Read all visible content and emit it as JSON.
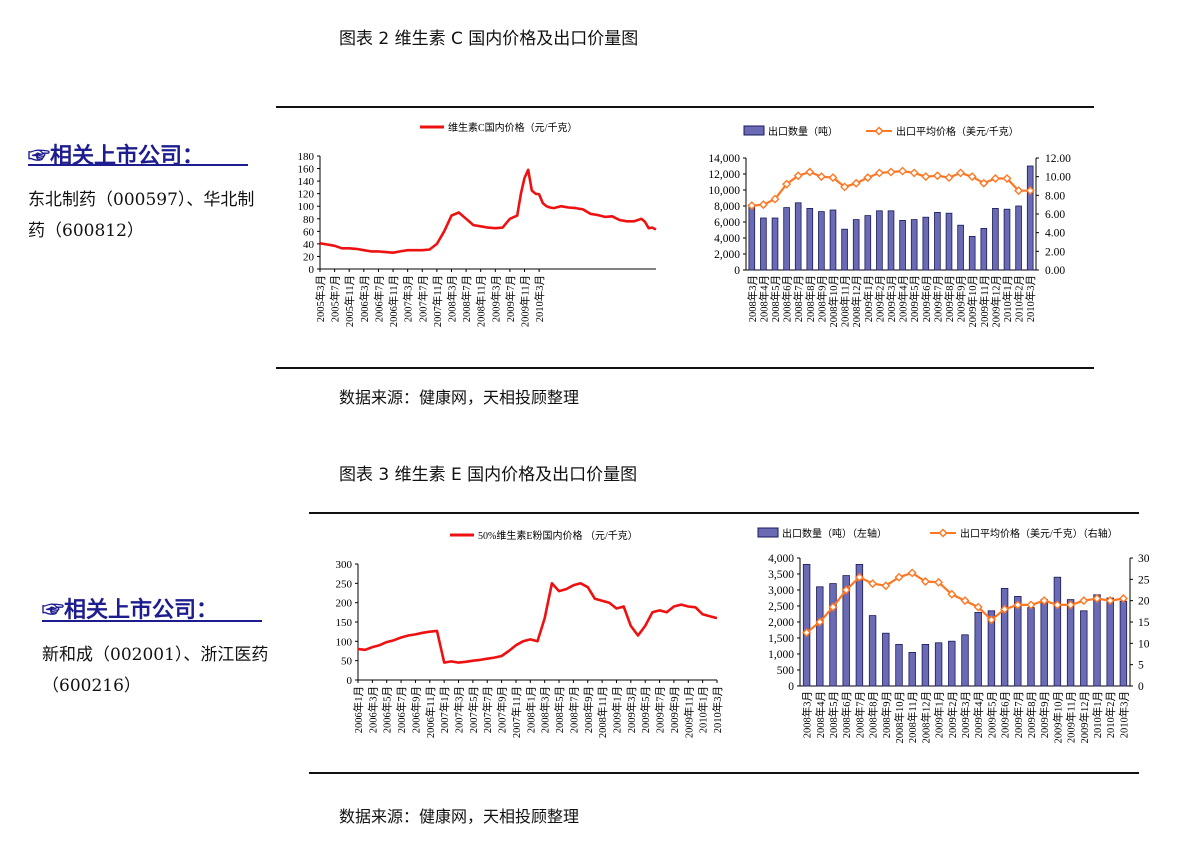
{
  "section1": {
    "title": "图表 2 维生素 C 国内价格及出口价量图",
    "source": "数据来源：健康网，天相投顾整理",
    "sidebar": {
      "icon": "pointing-hand",
      "heading": "☞相关上市公司：",
      "companies": "东北制药（000597）、华北制药（600812）"
    }
  },
  "section2": {
    "title": "图表 3 维生素 E 国内价格及出口价量图",
    "source": "数据来源：健康网，天相投顾整理",
    "sidebar": {
      "icon": "pointing-hand",
      "heading": "☞相关上市公司：",
      "companies": "新和成（002001）、浙江医药（600216）"
    }
  },
  "colors": {
    "price_line": "#ee1111",
    "bar_fill": "#6a6ab5",
    "bar_stroke": "#1a1a5a",
    "avg_line": "#ff7722",
    "avg_marker_fill": "#ffffff",
    "accent_blue": "#1d1d8f"
  },
  "chart_data": [
    {
      "id": "vc-price",
      "type": "line",
      "title": "",
      "legend": [
        "维生素C国内价格（元/千克）"
      ],
      "legend_position": "top",
      "xlabel": "",
      "ylabel": "",
      "ylim": [
        0,
        180
      ],
      "yticks": [
        0,
        20,
        40,
        60,
        80,
        100,
        120,
        140,
        160,
        180
      ],
      "xticks": [
        "2005年3月",
        "2005年7月",
        "2005年11月",
        "2006年3月",
        "2006年7月",
        "2006年11月",
        "2007年3月",
        "2007年7月",
        "2007年11月",
        "2008年3月",
        "2008年7月",
        "2008年11月",
        "2009年3月",
        "2009年7月",
        "2009年11月",
        "2010年3月"
      ],
      "series": [
        {
          "name": "维生素C国内价格（元/千克）",
          "x_months": [
            0,
            2,
            4,
            6,
            8,
            10,
            12,
            14,
            16,
            18,
            20,
            22,
            24,
            26,
            28,
            30,
            32,
            34,
            36,
            38,
            40,
            41,
            42,
            44,
            46,
            48,
            50,
            52,
            54,
            55,
            56,
            57,
            58,
            59,
            60,
            61,
            62,
            63,
            64,
            66,
            68,
            70,
            72,
            74,
            76,
            78,
            80,
            82,
            84,
            86,
            88,
            89,
            90,
            91,
            92
          ],
          "values": [
            41,
            39,
            37,
            33,
            33,
            32,
            30,
            28,
            28,
            27,
            26,
            28,
            30,
            30,
            30,
            31,
            40,
            60,
            85,
            90,
            80,
            75,
            70,
            68,
            66,
            65,
            66,
            80,
            85,
            120,
            145,
            158,
            125,
            120,
            119,
            105,
            100,
            98,
            97,
            100,
            98,
            97,
            95,
            88,
            86,
            83,
            84,
            78,
            76,
            76,
            80,
            75,
            65,
            66,
            63
          ]
        }
      ]
    },
    {
      "id": "vc-export",
      "type": "bar",
      "title": "",
      "legend": [
        "出口数量（吨）",
        "出口平均价格（美元/千克）"
      ],
      "legend_position": "top",
      "xlabel": "",
      "ylabel": "",
      "ylim": [
        0,
        14000
      ],
      "y2lim": [
        0,
        12
      ],
      "yticks": [
        "0",
        "2,000",
        "4,000",
        "6,000",
        "8,000",
        "10,000",
        "12,000",
        "14,000"
      ],
      "y2ticks": [
        "0.00",
        "2.00",
        "4.00",
        "6.00",
        "8.00",
        "10.00",
        "12.00"
      ],
      "categories": [
        "2008年3月",
        "2008年4月",
        "2008年5月",
        "2008年6月",
        "2008年7月",
        "2008年8月",
        "2008年9月",
        "2008年10月",
        "2008年11月",
        "2008年12月",
        "2009年1月",
        "2009年2月",
        "2009年3月",
        "2009年4月",
        "2009年5月",
        "2009年6月",
        "2009年7月",
        "2009年8月",
        "2009年9月",
        "2009年10月",
        "2009年11月",
        "2009年12月",
        "2010年1月",
        "2010年2月",
        "2010年3月"
      ],
      "series": [
        {
          "name": "出口数量（吨）",
          "axis": "left",
          "values": [
            8200,
            6500,
            6500,
            7800,
            8400,
            7700,
            7300,
            7500,
            5100,
            6300,
            6800,
            7400,
            7400,
            6200,
            6300,
            6600,
            7200,
            7100,
            5600,
            4200,
            5200,
            7700,
            7600,
            8000,
            13000
          ]
        },
        {
          "name": "出口平均价格（美元/千克）",
          "axis": "right",
          "values": [
            6.9,
            7.0,
            7.6,
            9.2,
            10.1,
            10.5,
            10.0,
            9.9,
            8.9,
            9.3,
            9.9,
            10.4,
            10.5,
            10.6,
            10.4,
            10.0,
            10.1,
            9.9,
            10.4,
            10.0,
            9.3,
            9.8,
            9.8,
            8.5,
            8.5
          ]
        }
      ]
    },
    {
      "id": "ve-price",
      "type": "line",
      "title": "",
      "legend": [
        "50%维生素E粉国内价格 （元/千克）"
      ],
      "legend_position": "top",
      "xlabel": "",
      "ylabel": "",
      "ylim": [
        0,
        300
      ],
      "yticks": [
        0,
        50,
        100,
        150,
        200,
        250,
        300
      ],
      "xticks": [
        "2006年1月",
        "2006年3月",
        "2006年5月",
        "2006年7月",
        "2006年9月",
        "2006年11月",
        "2007年1月",
        "2007年3月",
        "2007年5月",
        "2007年7月",
        "2007年9月",
        "2007年11月",
        "2008年1月",
        "2008年3月",
        "2008年5月",
        "2008年7月",
        "2008年9月",
        "2008年11月",
        "2009年1月",
        "2009年3月",
        "2009年5月",
        "2009年7月",
        "2009年9月",
        "2009年11月",
        "2010年1月",
        "2010年3月"
      ],
      "series": [
        {
          "name": "50%维生素E粉国内价格 （元/千克）",
          "x_months": [
            0,
            1,
            2,
            3,
            4,
            5,
            6,
            7,
            8,
            9,
            10,
            11,
            12,
            13,
            14,
            15,
            16,
            17,
            18,
            19,
            20,
            21,
            22,
            23,
            24,
            25,
            26,
            27,
            28,
            29,
            30,
            31,
            32,
            33,
            34,
            35,
            36,
            37,
            38,
            39,
            40,
            41,
            42,
            43,
            44,
            45,
            46,
            47,
            48,
            49,
            50
          ],
          "values": [
            80,
            78,
            85,
            90,
            98,
            103,
            110,
            115,
            118,
            122,
            125,
            127,
            45,
            48,
            45,
            47,
            50,
            52,
            55,
            58,
            62,
            75,
            90,
            100,
            105,
            100,
            160,
            250,
            230,
            235,
            245,
            250,
            240,
            210,
            205,
            200,
            185,
            190,
            140,
            115,
            140,
            175,
            180,
            175,
            190,
            195,
            190,
            188,
            170,
            165,
            160
          ]
        }
      ]
    },
    {
      "id": "ve-export",
      "type": "bar",
      "title": "",
      "legend": [
        "出口数量（吨）（左轴）",
        "出口平均价格（美元/千克）（右轴）"
      ],
      "legend_position": "top",
      "xlabel": "",
      "ylabel": "",
      "ylim": [
        0,
        4000
      ],
      "y2lim": [
        0,
        30
      ],
      "yticks": [
        "0",
        "500",
        "1,000",
        "1,500",
        "2,000",
        "2,500",
        "3,000",
        "3,500",
        "4,000"
      ],
      "y2ticks": [
        "0",
        "5",
        "10",
        "15",
        "20",
        "25",
        "30"
      ],
      "categories": [
        "2008年3月",
        "2008年4月",
        "2008年5月",
        "2008年6月",
        "2008年7月",
        "2008年8月",
        "2008年9月",
        "2008年10月",
        "2008年11月",
        "2008年12月",
        "2009年1月",
        "2009年2月",
        "2009年3月",
        "2009年4月",
        "2009年5月",
        "2009年6月",
        "2009年7月",
        "2009年8月",
        "2009年9月",
        "2009年10月",
        "2009年11月",
        "2009年12月",
        "2010年1月",
        "2010年2月",
        "2010年3月"
      ],
      "series": [
        {
          "name": "出口数量（吨）（左轴）",
          "axis": "left",
          "values": [
            3800,
            3100,
            3200,
            3450,
            3800,
            2200,
            1650,
            1300,
            1050,
            1300,
            1350,
            1400,
            1600,
            2300,
            2350,
            3050,
            2800,
            2450,
            2700,
            3400,
            2700,
            2350,
            2850,
            2750,
            2650
          ]
        },
        {
          "name": "出口平均价格（美元/千克）（右轴）",
          "axis": "right",
          "values": [
            12.5,
            15.0,
            18.5,
            22.5,
            25.5,
            24.0,
            23.5,
            25.5,
            26.5,
            24.5,
            24.3,
            21.5,
            20.0,
            18.5,
            15.5,
            18.0,
            19.0,
            19.0,
            20.0,
            19.0,
            19.0,
            20.0,
            20.5,
            20.0,
            20.5
          ]
        }
      ]
    }
  ]
}
